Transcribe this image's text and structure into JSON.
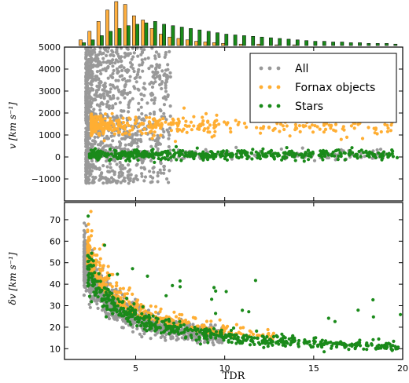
{
  "chart_data": [
    {
      "type": "histogram",
      "position": "top",
      "series": [
        {
          "name": "Fornax objects",
          "color": "#ffb040",
          "x": [
            2.0,
            2.5,
            3.0,
            3.5,
            4.0,
            4.5,
            5.0,
            5.5,
            6.0,
            6.5,
            7.0,
            7.5,
            8.0,
            8.5,
            9.0,
            9.5,
            10.0,
            11.0,
            12.0,
            13.0,
            14.0
          ],
          "values": [
            8,
            20,
            34,
            50,
            62,
            58,
            42,
            36,
            24,
            16,
            12,
            10,
            8,
            6,
            5,
            4,
            3,
            2,
            2,
            1,
            1
          ]
        },
        {
          "name": "Stars",
          "color": "#1a8a1a",
          "x": [
            2.0,
            2.5,
            3.0,
            3.5,
            4.0,
            4.5,
            5.0,
            5.5,
            6.0,
            6.5,
            7.0,
            7.5,
            8.0,
            8.5,
            9.0,
            9.5,
            10.0,
            10.5,
            11.0,
            11.5,
            12.0,
            12.5,
            13.0,
            13.5,
            14.0,
            14.5,
            15.0,
            15.5,
            16.0,
            16.5,
            17.0,
            17.5,
            18.0,
            18.5,
            19.0,
            19.5
          ],
          "values": [
            4,
            8,
            14,
            20,
            24,
            28,
            30,
            32,
            34,
            30,
            28,
            26,
            24,
            22,
            20,
            18,
            16,
            15,
            14,
            13,
            12,
            11,
            10,
            9,
            8,
            7,
            6,
            6,
            5,
            5,
            4,
            4,
            3,
            3,
            3,
            2
          ]
        }
      ]
    },
    {
      "type": "scatter",
      "position": "middle",
      "xlim": [
        1,
        20
      ],
      "ylim": [
        -2000,
        5000
      ],
      "yticks": [
        "−1000",
        "0",
        "1000",
        "2000",
        "3000",
        "4000",
        "5000"
      ],
      "ylabel": "v [km s⁻¹]",
      "legend": {
        "placement": "top-right",
        "entries": [
          "All",
          "Fornax objects",
          "Stars"
        ]
      },
      "series": [
        {
          "name": "All",
          "color": "#999999",
          "points": "generated-dense-cloud"
        },
        {
          "name": "Fornax objects",
          "color": "#ffae33",
          "points": "generated"
        },
        {
          "name": "Stars",
          "color": "#1a8a1a",
          "points": "generated"
        }
      ]
    },
    {
      "type": "scatter",
      "position": "bottom",
      "xlim": [
        1,
        20
      ],
      "ylim": [
        5,
        78
      ],
      "yticks": [
        "10",
        "20",
        "30",
        "40",
        "50",
        "60",
        "70"
      ],
      "xticks": [
        "5",
        "10",
        "15",
        "20"
      ],
      "xlabel": "TDR",
      "ylabel": "δv [km s⁻¹]",
      "series": [
        {
          "name": "All",
          "color": "#999999"
        },
        {
          "name": "Fornax objects",
          "color": "#ffae33"
        },
        {
          "name": "Stars",
          "color": "#1a8a1a"
        }
      ]
    }
  ],
  "labels": {
    "legend_all": "All",
    "legend_fornax": "Fornax objects",
    "legend_stars": "Stars",
    "xlabel": "TDR",
    "ylabel_v": "v [km s⁻¹]",
    "ylabel_dv": "δv [km s⁻¹]"
  },
  "colors": {
    "all": "#999999",
    "fornax": "#ffae33",
    "stars": "#1a8a1a",
    "hist_fornax": "#ffb040",
    "hist_stars": "#1a8a1a"
  }
}
